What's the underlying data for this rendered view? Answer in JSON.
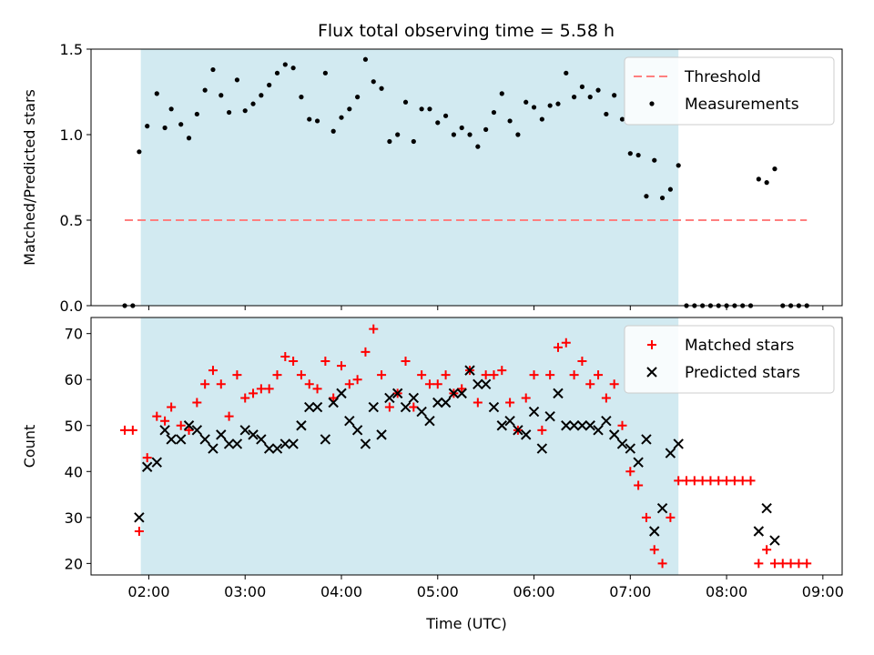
{
  "chart_data": [
    {
      "type": "scatter",
      "title": "Flux total observing time = 5.58 h",
      "xlabel": "",
      "ylabel": "Matched/Predicted stars",
      "xlim": [
        "01:24",
        "09:12"
      ],
      "ylim": [
        0,
        1.5
      ],
      "yticks": [
        "0.0",
        "0.5",
        "1.0",
        "1.5"
      ],
      "xticks": [
        "02:00",
        "03:00",
        "04:00",
        "05:00",
        "06:00",
        "07:00",
        "08:00",
        "09:00"
      ],
      "show_xtick_labels": false,
      "observing_window": [
        "01:55",
        "07:30"
      ],
      "observing_window_color": "#add8e6",
      "legend_position": "top-right",
      "threshold": {
        "name": "Threshold",
        "y": 0.5,
        "x_range": [
          "01:45",
          "08:50"
        ],
        "color": "#ff7f7f",
        "style": "dashed"
      },
      "series": [
        {
          "name": "Measurements",
          "color": "#000000",
          "marker": "dot",
          "points": [
            [
              "01:45",
              0
            ],
            [
              "01:50",
              0
            ],
            [
              "01:54",
              0.9
            ],
            [
              "01:59",
              1.05
            ],
            [
              "02:05",
              1.24
            ],
            [
              "02:10",
              1.04
            ],
            [
              "02:14",
              1.15
            ],
            [
              "02:20",
              1.06
            ],
            [
              "02:25",
              0.98
            ],
            [
              "02:30",
              1.12
            ],
            [
              "02:35",
              1.26
            ],
            [
              "02:40",
              1.38
            ],
            [
              "02:45",
              1.23
            ],
            [
              "02:50",
              1.13
            ],
            [
              "02:55",
              1.32
            ],
            [
              "03:00",
              1.14
            ],
            [
              "03:05",
              1.18
            ],
            [
              "03:10",
              1.23
            ],
            [
              "03:15",
              1.29
            ],
            [
              "03:20",
              1.36
            ],
            [
              "03:25",
              1.41
            ],
            [
              "03:30",
              1.39
            ],
            [
              "03:35",
              1.22
            ],
            [
              "03:40",
              1.09
            ],
            [
              "03:45",
              1.08
            ],
            [
              "03:50",
              1.36
            ],
            [
              "03:55",
              1.02
            ],
            [
              "04:00",
              1.1
            ],
            [
              "04:05",
              1.15
            ],
            [
              "04:10",
              1.22
            ],
            [
              "04:15",
              1.44
            ],
            [
              "04:20",
              1.31
            ],
            [
              "04:25",
              1.27
            ],
            [
              "04:30",
              0.96
            ],
            [
              "04:35",
              1.0
            ],
            [
              "04:40",
              1.19
            ],
            [
              "04:45",
              0.96
            ],
            [
              "04:50",
              1.15
            ],
            [
              "04:55",
              1.15
            ],
            [
              "05:00",
              1.07
            ],
            [
              "05:05",
              1.11
            ],
            [
              "05:10",
              1.0
            ],
            [
              "05:15",
              1.04
            ],
            [
              "05:20",
              1.0
            ],
            [
              "05:25",
              0.93
            ],
            [
              "05:30",
              1.03
            ],
            [
              "05:35",
              1.13
            ],
            [
              "05:40",
              1.24
            ],
            [
              "05:45",
              1.08
            ],
            [
              "05:50",
              1.0
            ],
            [
              "05:55",
              1.19
            ],
            [
              "06:00",
              1.16
            ],
            [
              "06:05",
              1.09
            ],
            [
              "06:10",
              1.17
            ],
            [
              "06:15",
              1.18
            ],
            [
              "06:20",
              1.36
            ],
            [
              "06:25",
              1.22
            ],
            [
              "06:30",
              1.28
            ],
            [
              "06:35",
              1.22
            ],
            [
              "06:40",
              1.26
            ],
            [
              "06:45",
              1.12
            ],
            [
              "06:50",
              1.23
            ],
            [
              "06:55",
              1.09
            ],
            [
              "07:00",
              0.89
            ],
            [
              "07:05",
              0.88
            ],
            [
              "07:10",
              0.64
            ],
            [
              "07:15",
              0.85
            ],
            [
              "07:20",
              0.63
            ],
            [
              "07:25",
              0.68
            ],
            [
              "07:30",
              0.82
            ],
            [
              "07:35",
              0
            ],
            [
              "07:40",
              0
            ],
            [
              "07:45",
              0
            ],
            [
              "07:50",
              0
            ],
            [
              "07:55",
              0
            ],
            [
              "08:00",
              0
            ],
            [
              "08:05",
              0
            ],
            [
              "08:10",
              0
            ],
            [
              "08:15",
              0
            ],
            [
              "08:20",
              0.74
            ],
            [
              "08:25",
              0.72
            ],
            [
              "08:30",
              0.8
            ],
            [
              "08:35",
              0
            ],
            [
              "08:40",
              0
            ],
            [
              "08:45",
              0
            ],
            [
              "08:50",
              0
            ]
          ]
        }
      ]
    },
    {
      "type": "scatter",
      "title": "",
      "xlabel": "Time (UTC)",
      "ylabel": "Count",
      "xlim": [
        "01:24",
        "09:12"
      ],
      "ylim": [
        17.5,
        73.5
      ],
      "yticks": [
        "20",
        "30",
        "40",
        "50",
        "60",
        "70"
      ],
      "xticks": [
        "02:00",
        "03:00",
        "04:00",
        "05:00",
        "06:00",
        "07:00",
        "08:00",
        "09:00"
      ],
      "show_xtick_labels": true,
      "observing_window": [
        "01:55",
        "07:30"
      ],
      "observing_window_color": "#add8e6",
      "legend_position": "top-right",
      "series": [
        {
          "name": "Matched stars",
          "color": "#ff0000",
          "marker": "plus",
          "points": [
            [
              "01:45",
              49
            ],
            [
              "01:50",
              49
            ],
            [
              "01:54",
              27
            ],
            [
              "01:59",
              43
            ],
            [
              "02:05",
              52
            ],
            [
              "02:10",
              51
            ],
            [
              "02:14",
              54
            ],
            [
              "02:20",
              50
            ],
            [
              "02:25",
              49
            ],
            [
              "02:30",
              55
            ],
            [
              "02:35",
              59
            ],
            [
              "02:40",
              62
            ],
            [
              "02:45",
              59
            ],
            [
              "02:50",
              52
            ],
            [
              "02:55",
              61
            ],
            [
              "03:00",
              56
            ],
            [
              "03:05",
              57
            ],
            [
              "03:10",
              58
            ],
            [
              "03:15",
              58
            ],
            [
              "03:20",
              61
            ],
            [
              "03:25",
              65
            ],
            [
              "03:30",
              64
            ],
            [
              "03:35",
              61
            ],
            [
              "03:40",
              59
            ],
            [
              "03:45",
              58
            ],
            [
              "03:50",
              64
            ],
            [
              "03:55",
              56
            ],
            [
              "04:00",
              63
            ],
            [
              "04:05",
              59
            ],
            [
              "04:10",
              60
            ],
            [
              "04:15",
              66
            ],
            [
              "04:20",
              71
            ],
            [
              "04:25",
              61
            ],
            [
              "04:30",
              54
            ],
            [
              "04:35",
              57
            ],
            [
              "04:40",
              64
            ],
            [
              "04:45",
              54
            ],
            [
              "04:50",
              61
            ],
            [
              "04:55",
              59
            ],
            [
              "05:00",
              59
            ],
            [
              "05:05",
              61
            ],
            [
              "05:10",
              57
            ],
            [
              "05:15",
              58
            ],
            [
              "05:20",
              62
            ],
            [
              "05:25",
              55
            ],
            [
              "05:30",
              61
            ],
            [
              "05:35",
              61
            ],
            [
              "05:40",
              62
            ],
            [
              "05:45",
              55
            ],
            [
              "05:50",
              49
            ],
            [
              "05:55",
              56
            ],
            [
              "06:00",
              61
            ],
            [
              "06:05",
              49
            ],
            [
              "06:10",
              61
            ],
            [
              "06:15",
              67
            ],
            [
              "06:20",
              68
            ],
            [
              "06:25",
              61
            ],
            [
              "06:30",
              64
            ],
            [
              "06:35",
              59
            ],
            [
              "06:40",
              61
            ],
            [
              "06:45",
              56
            ],
            [
              "06:50",
              59
            ],
            [
              "06:55",
              50
            ],
            [
              "07:00",
              40
            ],
            [
              "07:05",
              37
            ],
            [
              "07:10",
              30
            ],
            [
              "07:15",
              23
            ],
            [
              "07:20",
              20
            ],
            [
              "07:25",
              30
            ],
            [
              "07:30",
              38
            ],
            [
              "07:35",
              38
            ],
            [
              "07:40",
              38
            ],
            [
              "07:45",
              38
            ],
            [
              "07:50",
              38
            ],
            [
              "07:55",
              38
            ],
            [
              "08:00",
              38
            ],
            [
              "08:05",
              38
            ],
            [
              "08:10",
              38
            ],
            [
              "08:15",
              38
            ],
            [
              "08:20",
              20
            ],
            [
              "08:25",
              23
            ],
            [
              "08:30",
              20
            ],
            [
              "08:35",
              20
            ],
            [
              "08:40",
              20
            ],
            [
              "08:45",
              20
            ],
            [
              "08:50",
              20
            ]
          ]
        },
        {
          "name": "Predicted stars",
          "color": "#000000",
          "marker": "x",
          "points": [
            [
              "01:54",
              30
            ],
            [
              "01:59",
              41
            ],
            [
              "02:05",
              42
            ],
            [
              "02:10",
              49
            ],
            [
              "02:14",
              47
            ],
            [
              "02:20",
              47
            ],
            [
              "02:25",
              50
            ],
            [
              "02:30",
              49
            ],
            [
              "02:35",
              47
            ],
            [
              "02:40",
              45
            ],
            [
              "02:45",
              48
            ],
            [
              "02:50",
              46
            ],
            [
              "02:55",
              46
            ],
            [
              "03:00",
              49
            ],
            [
              "03:05",
              48
            ],
            [
              "03:10",
              47
            ],
            [
              "03:15",
              45
            ],
            [
              "03:20",
              45
            ],
            [
              "03:25",
              46
            ],
            [
              "03:30",
              46
            ],
            [
              "03:35",
              50
            ],
            [
              "03:40",
              54
            ],
            [
              "03:45",
              54
            ],
            [
              "03:50",
              47
            ],
            [
              "03:55",
              55
            ],
            [
              "04:00",
              57
            ],
            [
              "04:05",
              51
            ],
            [
              "04:10",
              49
            ],
            [
              "04:15",
              46
            ],
            [
              "04:20",
              54
            ],
            [
              "04:25",
              48
            ],
            [
              "04:30",
              56
            ],
            [
              "04:35",
              57
            ],
            [
              "04:40",
              54
            ],
            [
              "04:45",
              56
            ],
            [
              "04:50",
              53
            ],
            [
              "04:55",
              51
            ],
            [
              "05:00",
              55
            ],
            [
              "05:05",
              55
            ],
            [
              "05:10",
              57
            ],
            [
              "05:15",
              57
            ],
            [
              "05:20",
              62
            ],
            [
              "05:25",
              59
            ],
            [
              "05:30",
              59
            ],
            [
              "05:35",
              54
            ],
            [
              "05:40",
              50
            ],
            [
              "05:45",
              51
            ],
            [
              "05:50",
              49
            ],
            [
              "05:55",
              48
            ],
            [
              "06:00",
              53
            ],
            [
              "06:05",
              45
            ],
            [
              "06:10",
              52
            ],
            [
              "06:15",
              57
            ],
            [
              "06:20",
              50
            ],
            [
              "06:25",
              50
            ],
            [
              "06:30",
              50
            ],
            [
              "06:35",
              50
            ],
            [
              "06:40",
              49
            ],
            [
              "06:45",
              51
            ],
            [
              "06:50",
              48
            ],
            [
              "06:55",
              46
            ],
            [
              "07:00",
              45
            ],
            [
              "07:05",
              42
            ],
            [
              "07:10",
              47
            ],
            [
              "07:15",
              27
            ],
            [
              "07:20",
              32
            ],
            [
              "07:25",
              44
            ],
            [
              "07:30",
              46
            ],
            [
              "08:20",
              27
            ],
            [
              "08:25",
              32
            ],
            [
              "08:30",
              25
            ]
          ]
        }
      ]
    }
  ]
}
